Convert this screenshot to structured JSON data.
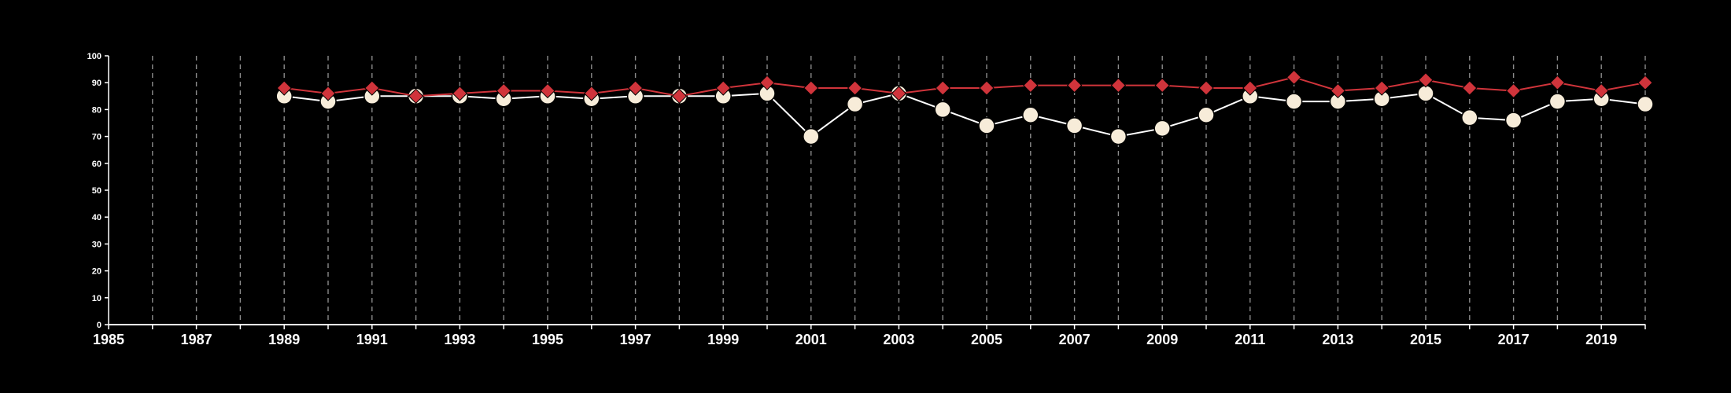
{
  "chart_data": {
    "type": "line",
    "title": "",
    "xlabel": "",
    "ylabel": "",
    "xlim": [
      1985,
      2020
    ],
    "ylim": [
      0,
      100
    ],
    "x_ticks": [
      1985,
      1987,
      1989,
      1991,
      1993,
      1995,
      1997,
      1999,
      2001,
      2003,
      2005,
      2007,
      2009,
      2011,
      2013,
      2015,
      2017,
      2019
    ],
    "y_ticks": [
      0,
      10,
      20,
      30,
      40,
      50,
      60,
      70,
      80,
      90,
      100
    ],
    "grid": "vertical-dashed",
    "legend": "none",
    "x": [
      1989,
      1990,
      1991,
      1992,
      1993,
      1994,
      1995,
      1996,
      1997,
      1998,
      1999,
      2000,
      2001,
      2002,
      2003,
      2004,
      2005,
      2006,
      2007,
      2008,
      2009,
      2010,
      2011,
      2012,
      2013,
      2014,
      2015,
      2016,
      2017,
      2018,
      2019,
      2020
    ],
    "series": [
      {
        "marker": "diamond",
        "color": "#d0343b",
        "values": [
          88,
          86,
          88,
          85,
          86,
          87,
          87,
          86,
          88,
          85,
          88,
          90,
          88,
          88,
          86,
          88,
          88,
          89,
          89,
          89,
          89,
          88,
          88,
          92,
          87,
          88,
          91,
          88,
          87,
          90,
          87,
          90
        ]
      },
      {
        "marker": "circle",
        "color": "#f7ecd9",
        "values": [
          85,
          83,
          85,
          85,
          85,
          84,
          85,
          84,
          85,
          85,
          85,
          86,
          70,
          82,
          86,
          80,
          74,
          78,
          74,
          70,
          73,
          78,
          85,
          83,
          83,
          84,
          86,
          77,
          76,
          83,
          84,
          82
        ]
      }
    ]
  }
}
